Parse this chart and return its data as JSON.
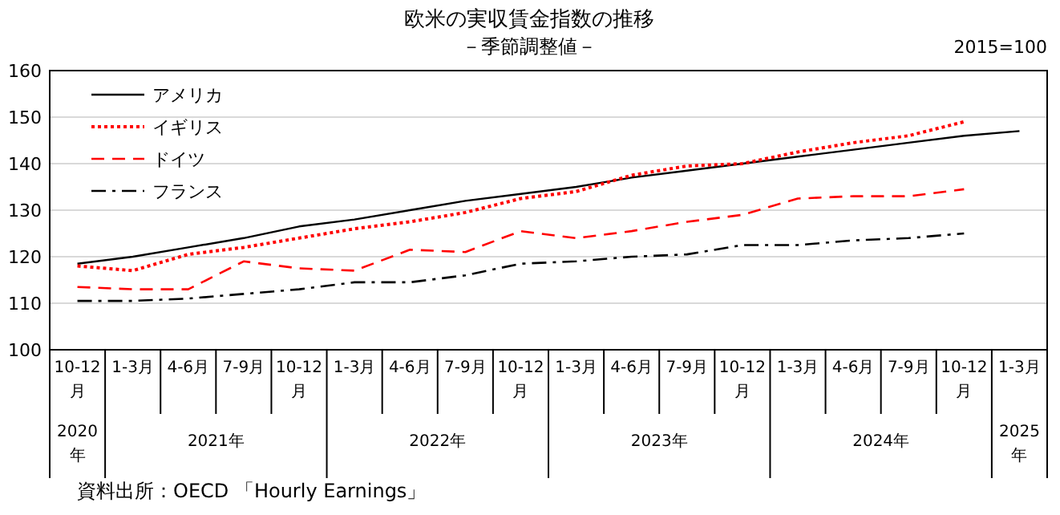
{
  "chart_data": {
    "type": "line",
    "title": "欧米の実収賃金指数の推移",
    "subtitle": "－季節調整値－",
    "annotations": [
      "2015=100",
      "資料出所：OECD 「Hourly Earnings」",
      "2020年",
      "2021年",
      "2022年",
      "2023年",
      "2024年",
      "2025年"
    ],
    "categories": [
      "10-12月",
      "1-3月",
      "4-6月",
      "7-9月",
      "10-12月",
      "1-3月",
      "4-6月",
      "7-9月",
      "10-12月",
      "1-3月",
      "4-6月",
      "7-9月",
      "10-12月",
      "1-3月",
      "4-6月",
      "7-9月",
      "10-12月",
      "1-3月"
    ],
    "series": [
      {
        "name": "アメリカ",
        "color": "#000000",
        "line_style": "solid",
        "values": [
          118.5,
          120,
          122,
          124,
          126.5,
          128,
          130,
          132,
          133.5,
          135,
          137,
          138.5,
          140,
          141.5,
          143,
          144.5,
          146,
          147
        ]
      },
      {
        "name": "イギリス",
        "color": "#ff0000",
        "line_style": "dotted",
        "values": [
          118,
          117,
          120.5,
          122,
          124,
          126,
          127.5,
          129.5,
          132.5,
          134,
          137.5,
          139.5,
          140,
          142.5,
          144.5,
          146,
          149,
          null
        ]
      },
      {
        "name": "ドイツ",
        "color": "#ff0000",
        "line_style": "dashed",
        "values": [
          113.5,
          113,
          113,
          119,
          117.5,
          117,
          121.5,
          121,
          125.5,
          124,
          125.5,
          127.5,
          129,
          132.5,
          133,
          133,
          134.5,
          null
        ]
      },
      {
        "name": "フランス",
        "color": "#000000",
        "line_style": "dashdot",
        "values": [
          110.5,
          110.5,
          111,
          112,
          113,
          114.5,
          114.5,
          116,
          118.5,
          119,
          120,
          120.5,
          122.5,
          122.5,
          123.5,
          124,
          125,
          null
        ]
      }
    ],
    "ylim": [
      100,
      160
    ],
    "yticks": [
      100,
      110,
      120,
      130,
      140,
      150,
      160
    ],
    "grid": "y",
    "legend": "top left",
    "marker": "none"
  }
}
